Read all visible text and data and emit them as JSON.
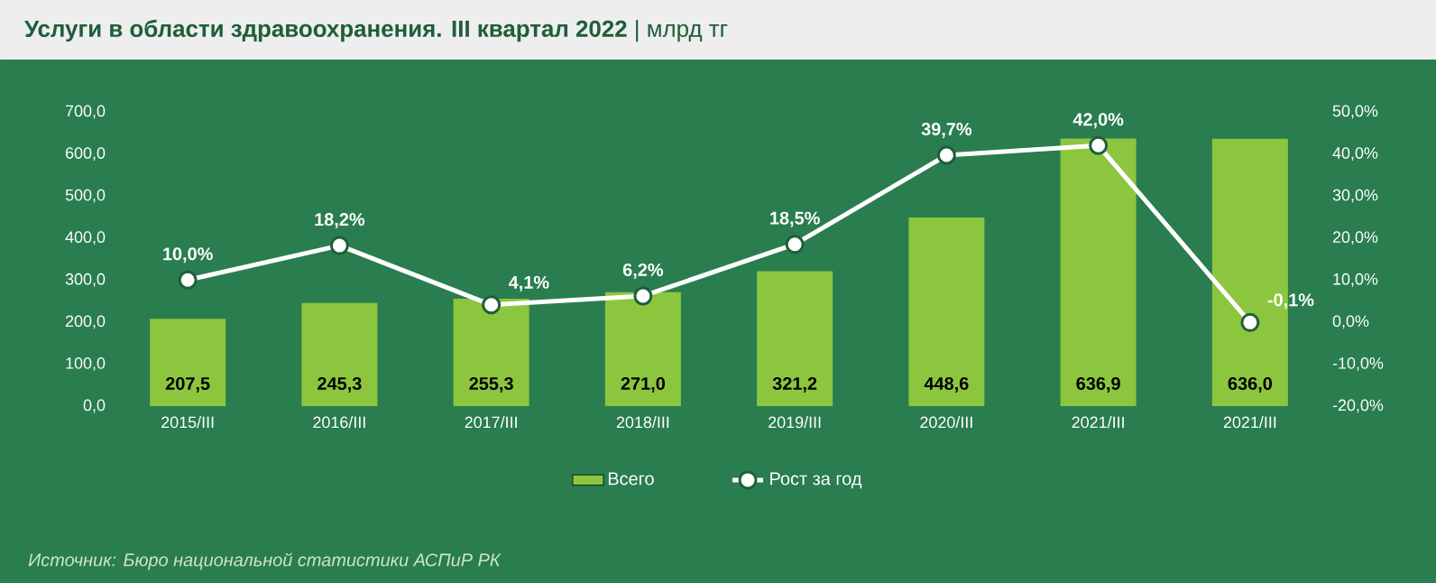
{
  "chart_data": {
    "type": "bar",
    "title": "**Услуги в области здравоохранения. III квартал 2022** | млрд тг",
    "categories": [
      "2015/III",
      "2016/III",
      "2017/III",
      "2018/III",
      "2019/III",
      "2020/III",
      "2021/III",
      "2021/III"
    ],
    "series": [
      {
        "name": "Всего",
        "color": "#8cc63e",
        "values": [
          207.5,
          245.3,
          255.3,
          271.0,
          321.2,
          448.6,
          636.9,
          636.0
        ],
        "value_labels": [
          "207,5",
          "245,3",
          "255,3",
          "271,0",
          "321,2",
          "448,6",
          "636,9",
          "636,0"
        ]
      },
      {
        "name": "Рост за год",
        "type": "line",
        "axis": "y2",
        "color": "#ffffff",
        "marker": "circle",
        "values": [
          10.0,
          18.2,
          4.1,
          6.2,
          18.5,
          39.7,
          42.0,
          -0.1
        ],
        "value_labels": [
          "10,0%",
          "18,2%",
          "4,1%",
          "6,2%",
          "18,5%",
          "39,7%",
          "42,0%",
          "-0,1%"
        ]
      }
    ],
    "ylim": [
      0,
      700
    ],
    "yticks": [
      {
        "value": 0,
        "label": "0,0"
      },
      {
        "value": 100,
        "label": "100,0"
      },
      {
        "value": 200,
        "label": "200,0"
      },
      {
        "value": 300,
        "label": "300,0"
      },
      {
        "value": 400,
        "label": "400,0"
      },
      {
        "value": 500,
        "label": "500,0"
      },
      {
        "value": 600,
        "label": "600,0"
      },
      {
        "value": 700,
        "label": "700,0"
      }
    ],
    "y2lim": [
      -20,
      50
    ],
    "y2ticks": [
      {
        "value": -20,
        "label": "-20,0%"
      },
      {
        "value": -10,
        "label": "-10,0%"
      },
      {
        "value": 0,
        "label": "0,0%"
      },
      {
        "value": 10,
        "label": "10,0%"
      },
      {
        "value": 20,
        "label": "20,0%"
      },
      {
        "value": 30,
        "label": "30,0%"
      },
      {
        "value": 40,
        "label": "40,0%"
      },
      {
        "value": 50,
        "label": "50,0%"
      }
    ],
    "legend": "bottom",
    "annotations": [
      "Источник: Бюро национальной статистики АСПиР РК"
    ]
  }
}
